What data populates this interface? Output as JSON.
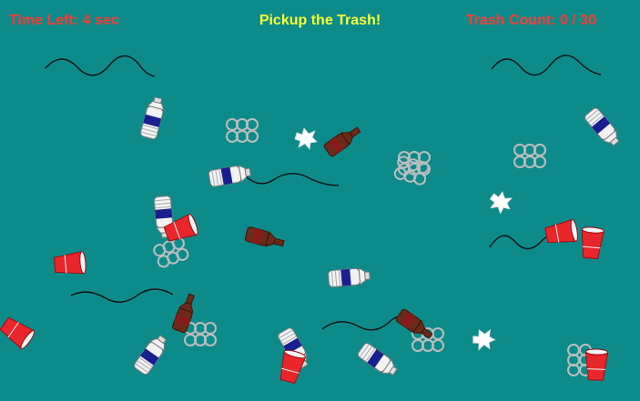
{
  "hud": {
    "time_label": "Time Left:",
    "time_value": "4",
    "time_unit": "sec",
    "title": "Pickup the Trash!",
    "count_label": "Trash Count:",
    "count_value": "0",
    "count_total": "30"
  },
  "colors": {
    "background": "#0d8b8b",
    "hud_red": "#ff3b30",
    "hud_yellow": "#ffff33",
    "cup_red": "#e8262b",
    "bottle_brown": "#6b2a1a",
    "bottle_blue": "#1a1f8f"
  },
  "trash_types": [
    "water-bottle",
    "beer-bottle",
    "red-cup",
    "six-pack-rings",
    "paper-scrap",
    "string"
  ]
}
